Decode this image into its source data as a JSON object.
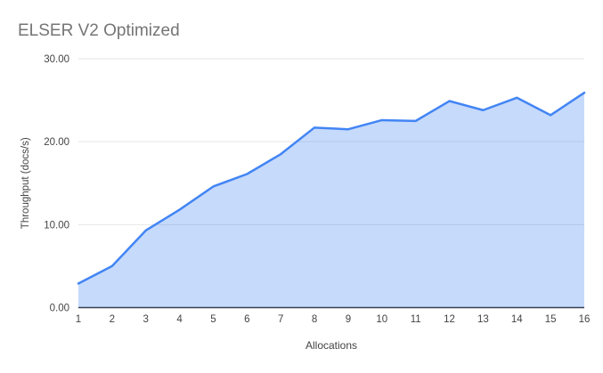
{
  "figure": {
    "background": "#ffffff"
  },
  "chart_data": {
    "type": "area",
    "title": "ELSER V2 Optimized",
    "xlabel": "Allocations",
    "ylabel": "Throughput (docs/s)",
    "x": [
      1,
      2,
      3,
      4,
      5,
      6,
      7,
      8,
      9,
      10,
      11,
      12,
      13,
      14,
      15,
      16
    ],
    "values": [
      2.9,
      5.0,
      9.3,
      11.8,
      14.6,
      16.1,
      18.5,
      21.7,
      21.5,
      22.6,
      22.5,
      24.9,
      23.8,
      25.3,
      23.2,
      25.9
    ],
    "xtick_labels": [
      "1",
      "2",
      "3",
      "4",
      "5",
      "6",
      "7",
      "8",
      "9",
      "10",
      "11",
      "12",
      "13",
      "14",
      "15",
      "16"
    ],
    "ylim": [
      0,
      30
    ],
    "yticks": [
      0,
      10,
      20,
      30
    ],
    "ytick_labels": [
      "0.00",
      "10.00",
      "20.00",
      "30.00"
    ],
    "grid": true,
    "legend_position": "none",
    "colors": {
      "line": "#4285f4",
      "fill": "rgba(66,133,244,0.3)",
      "gridline": "#e6e6e6",
      "baseline": "#333333",
      "tick_text": "#444444",
      "axis_label_text": "#444444",
      "title_text": "#757575"
    }
  }
}
